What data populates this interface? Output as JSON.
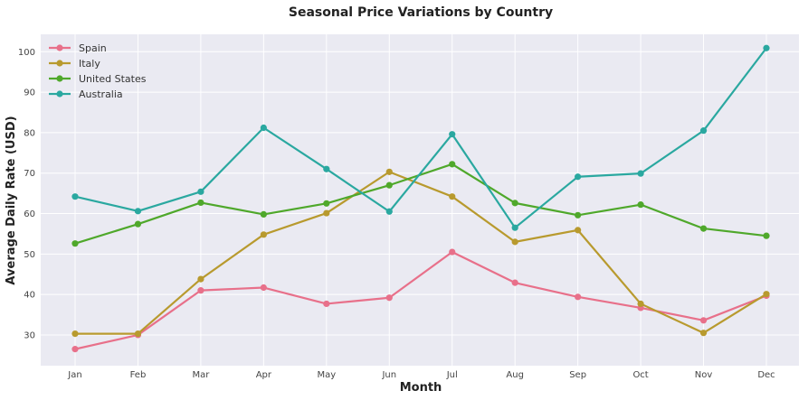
{
  "chart_data": {
    "type": "line",
    "title": "Seasonal Price Variations by Country",
    "xlabel": "Month",
    "ylabel": "Average Daily Rate (USD)",
    "categories": [
      "Jan",
      "Feb",
      "Mar",
      "Apr",
      "May",
      "Jun",
      "Jul",
      "Aug",
      "Sep",
      "Oct",
      "Nov",
      "Dec"
    ],
    "ylim": [
      22.4,
      104.3
    ],
    "yticks": [
      30,
      40,
      50,
      60,
      70,
      80,
      90,
      100
    ],
    "grid": true,
    "legend_position": "top-left",
    "background": "#eaeaf2",
    "series": [
      {
        "name": "Spain",
        "color": "#e8708a",
        "values": [
          26.5,
          30.0,
          41.0,
          41.7,
          37.7,
          39.2,
          50.5,
          42.9,
          39.4,
          36.7,
          33.6,
          39.7
        ]
      },
      {
        "name": "Italy",
        "color": "#b89a2e",
        "values": [
          30.3,
          30.3,
          43.8,
          54.8,
          60.1,
          70.3,
          64.2,
          53.0,
          55.9,
          37.7,
          30.5,
          40.1
        ]
      },
      {
        "name": "United States",
        "color": "#4fa82b",
        "values": [
          52.6,
          57.4,
          62.7,
          59.8,
          62.5,
          67.0,
          72.2,
          62.6,
          59.6,
          62.2,
          56.3,
          54.5
        ]
      },
      {
        "name": "Australia",
        "color": "#2aa8a0",
        "values": [
          64.2,
          60.6,
          65.4,
          81.2,
          71.0,
          60.5,
          79.6,
          56.5,
          69.1,
          69.9,
          80.5,
          100.9
        ]
      }
    ]
  }
}
